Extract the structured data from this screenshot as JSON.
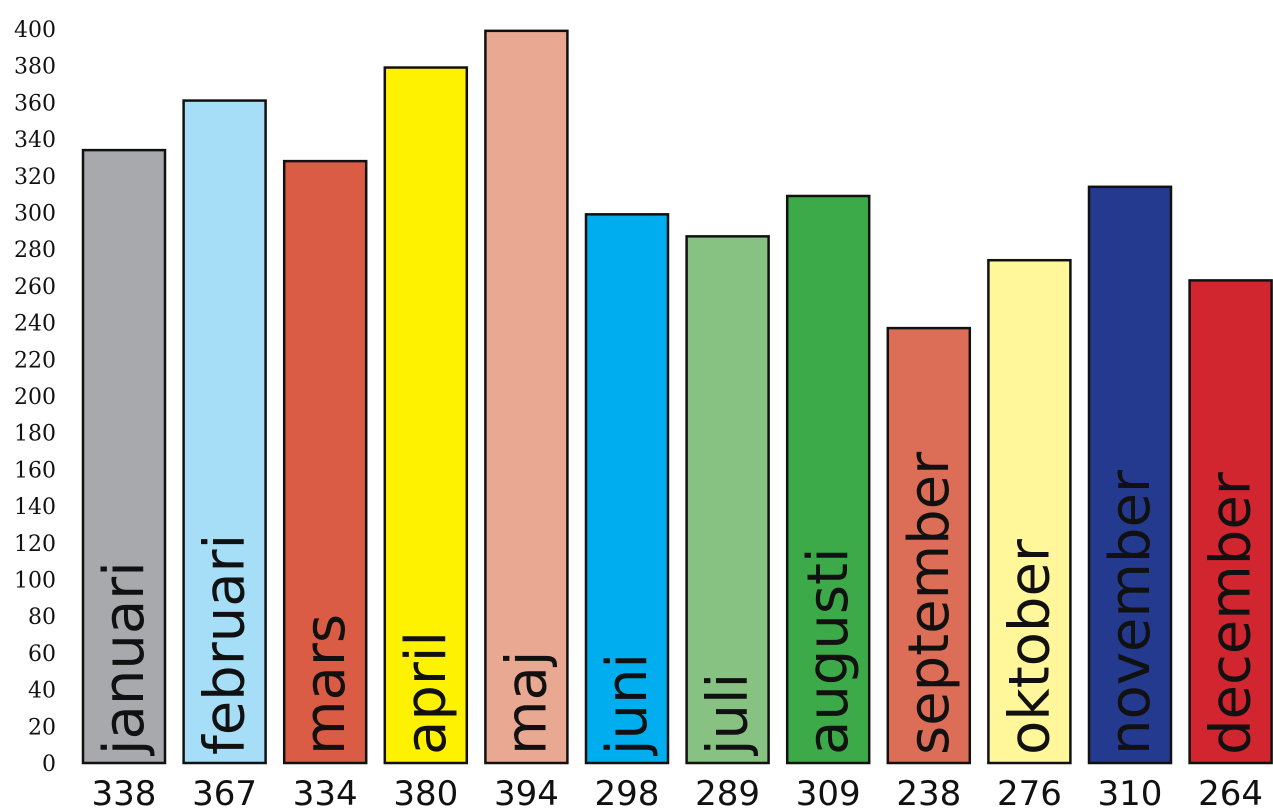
{
  "chart_data": {
    "type": "bar",
    "title": "",
    "xlabel": "",
    "ylabel": "",
    "categories": [
      "januari",
      "februari",
      "mars",
      "april",
      "maj",
      "juni",
      "juli",
      "augusti",
      "september",
      "oktober",
      "november",
      "december"
    ],
    "values": [
      338,
      367,
      334,
      380,
      394,
      298,
      289,
      309,
      238,
      276,
      310,
      264
    ],
    "value_labels": [
      "338",
      "367",
      "334",
      "380",
      "394",
      "298",
      "289",
      "309",
      "238",
      "276",
      "310",
      "264"
    ],
    "bar_heights": [
      334,
      361,
      328,
      379,
      399,
      299,
      287,
      309,
      237,
      274,
      314,
      263
    ],
    "colors": [
      "#A7A9AC",
      "#A6DDF7",
      "#DA5C44",
      "#FFF200",
      "#E9A891",
      "#00AEEF",
      "#87C282",
      "#3DAA4A",
      "#DC6E57",
      "#FFF799",
      "#243A8F",
      "#D12530"
    ],
    "ylim": [
      0,
      400
    ],
    "yticks": [
      "0",
      "20",
      "40",
      "60",
      "80",
      "100",
      "120",
      "140",
      "160",
      "180",
      "200",
      "220",
      "240",
      "260",
      "280",
      "300",
      "320",
      "340",
      "360",
      "380",
      "400"
    ],
    "grid": false,
    "legend": "none"
  }
}
